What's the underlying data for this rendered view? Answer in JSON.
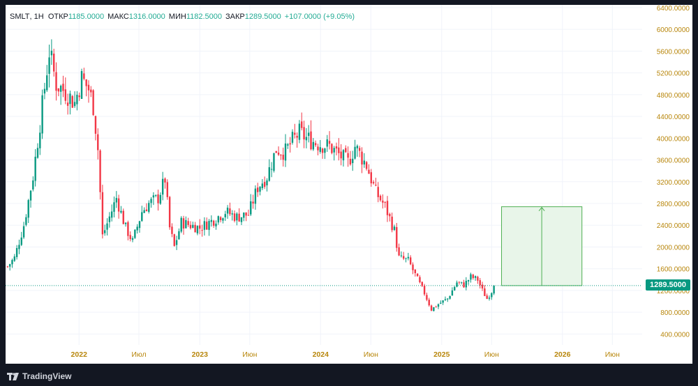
{
  "legend": {
    "symbol": "SMLT",
    "interval": "1Н",
    "open_label": "ОТКР",
    "open": "1185.0000",
    "high_label": "МАКС",
    "high": "1316.0000",
    "low_label": "МИН",
    "low": "1182.5000",
    "close_label": "ЗАКР",
    "close": "1289.5000",
    "change": "+107.0000 (+9.05%)"
  },
  "price_tag": "1289.5000",
  "footer": {
    "brand": "TradingView",
    "logo_icon": "tradingview-logo-icon"
  },
  "colors": {
    "up": "#089981",
    "down": "#f23645",
    "axis_text": "#b8860b",
    "grid": "#f0f3fa",
    "projection_fill": "#e8f5e9",
    "projection_line": "#4caf50",
    "background": "#131722"
  },
  "chart_data": {
    "type": "candlestick",
    "interval": "weekly",
    "x_range": [
      "2021-05-24",
      "2026-08-30"
    ],
    "y_range": [
      200,
      6450
    ],
    "y_ticks": [
      "6400.0000",
      "6000.0000",
      "5600.0000",
      "5200.0000",
      "4800.0000",
      "4400.0000",
      "4000.0000",
      "3600.0000",
      "3200.0000",
      "2800.0000",
      "2400.0000",
      "2000.0000",
      "1600.0000",
      "1200.0000",
      "800.0000",
      "400.0000"
    ],
    "y_tick_values": [
      6400,
      6000,
      5600,
      5200,
      4800,
      4400,
      4000,
      3600,
      3200,
      2800,
      2400,
      2000,
      1600,
      1200,
      800,
      400
    ],
    "x_ticks": [
      {
        "label": "2022",
        "date": "2022-01-01",
        "bold": true
      },
      {
        "label": "Июл",
        "date": "2022-07-01",
        "bold": false
      },
      {
        "label": "2023",
        "date": "2023-01-01",
        "bold": true
      },
      {
        "label": "Июн",
        "date": "2023-06-01",
        "bold": false
      },
      {
        "label": "2024",
        "date": "2024-01-01",
        "bold": true
      },
      {
        "label": "Июн",
        "date": "2024-06-01",
        "bold": false
      },
      {
        "label": "2025",
        "date": "2025-01-01",
        "bold": true
      },
      {
        "label": "Июн",
        "date": "2025-06-01",
        "bold": false
      },
      {
        "label": "2026",
        "date": "2026-01-01",
        "bold": true
      },
      {
        "label": "Июн",
        "date": "2026-06-01",
        "bold": false
      }
    ],
    "last_price": 1289.5,
    "projection": {
      "start_date": "2025-07-01",
      "end_date": "2026-03-01",
      "from_price": 1289.5,
      "to_price": 2740
    },
    "price_path": [
      [
        "2021-05-30",
        1640
      ],
      [
        "2021-06-20",
        1800
      ],
      [
        "2021-07-18",
        2400
      ],
      [
        "2021-08-15",
        3300
      ],
      [
        "2021-09-12",
        4600
      ],
      [
        "2021-10-03",
        5600
      ],
      [
        "2021-10-24",
        5000
      ],
      [
        "2021-11-21",
        4850
      ],
      [
        "2021-12-19",
        4650
      ],
      [
        "2022-01-09",
        5100
      ],
      [
        "2022-01-30",
        4900
      ],
      [
        "2022-02-13",
        4600
      ],
      [
        "2022-02-27",
        3800
      ],
      [
        "2022-03-13",
        2200
      ],
      [
        "2022-04-03",
        2550
      ],
      [
        "2022-04-24",
        2900
      ],
      [
        "2022-05-22",
        2350
      ],
      [
        "2022-06-12",
        2100
      ],
      [
        "2022-07-10",
        2650
      ],
      [
        "2022-07-31",
        2800
      ],
      [
        "2022-08-28",
        2900
      ],
      [
        "2022-09-18",
        3250
      ],
      [
        "2022-10-02",
        2350
      ],
      [
        "2022-10-16",
        2000
      ],
      [
        "2022-11-06",
        2450
      ],
      [
        "2022-12-04",
        2400
      ],
      [
        "2023-01-01",
        2350
      ],
      [
        "2023-02-12",
        2500
      ],
      [
        "2023-03-19",
        2650
      ],
      [
        "2023-04-23",
        2550
      ],
      [
        "2023-05-28",
        2600
      ],
      [
        "2023-06-25",
        3100
      ],
      [
        "2023-07-23",
        3300
      ],
      [
        "2023-08-20",
        3800
      ],
      [
        "2023-09-17",
        3750
      ],
      [
        "2023-10-08",
        3950
      ],
      [
        "2023-10-29",
        4100
      ],
      [
        "2023-11-19",
        4000
      ],
      [
        "2023-12-24",
        3900
      ],
      [
        "2024-01-28",
        3850
      ],
      [
        "2024-02-25",
        3700
      ],
      [
        "2024-03-24",
        3550
      ],
      [
        "2024-04-14",
        3850
      ],
      [
        "2024-05-19",
        3500
      ],
      [
        "2024-06-16",
        3000
      ],
      [
        "2024-07-14",
        2750
      ],
      [
        "2024-08-11",
        2300
      ],
      [
        "2024-08-25",
        1800
      ],
      [
        "2024-09-22",
        1750
      ],
      [
        "2024-10-20",
        1400
      ],
      [
        "2024-11-10",
        1150
      ],
      [
        "2024-12-01",
        850
      ],
      [
        "2024-12-22",
        950
      ],
      [
        "2025-01-19",
        1050
      ],
      [
        "2025-02-16",
        1350
      ],
      [
        "2025-03-09",
        1300
      ],
      [
        "2025-03-30",
        1450
      ],
      [
        "2025-04-20",
        1400
      ],
      [
        "2025-05-04",
        1200
      ],
      [
        "2025-05-18",
        1050
      ],
      [
        "2025-06-01",
        1185
      ],
      [
        "2025-06-08",
        1289.5
      ]
    ]
  }
}
